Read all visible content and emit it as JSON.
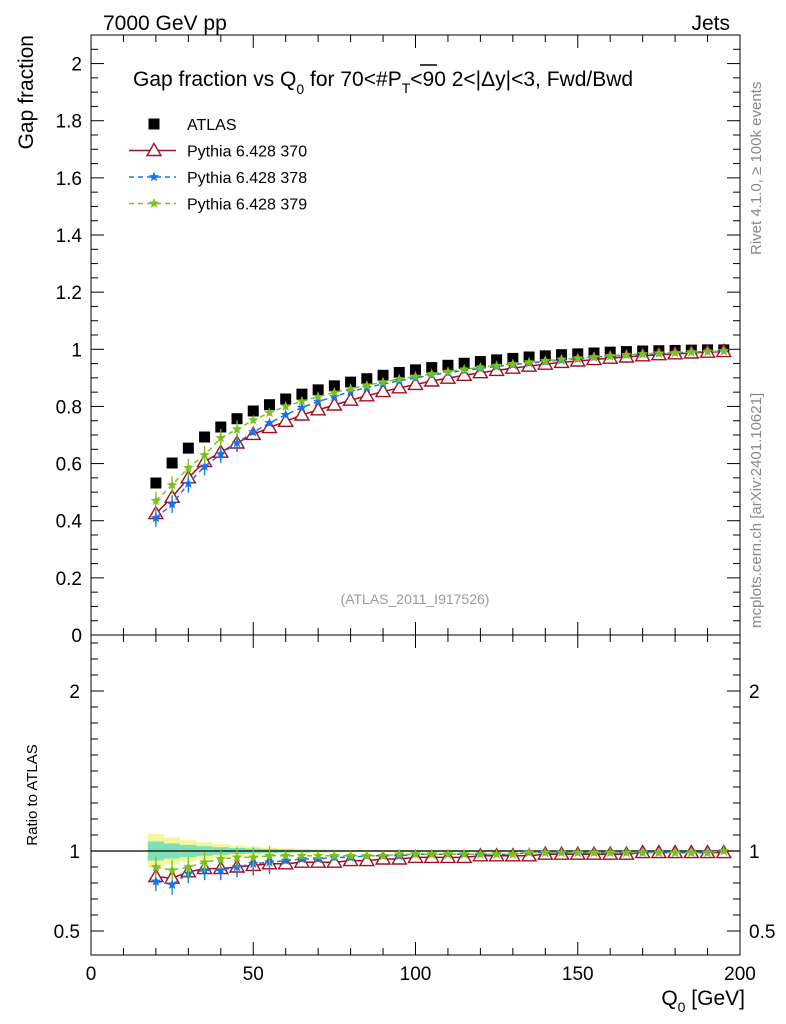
{
  "header": {
    "left": "7000 GeV pp",
    "right": "Jets"
  },
  "side_labels": {
    "rivet": "Rivet 4.1.0, ≥ 100k events",
    "mcplots": "mcplots.cern.ch [arXiv:2401.10621]"
  },
  "chart_data": [
    {
      "type": "scatter",
      "panel": "main",
      "title": "Gap fraction vs Q₀ for 70<#P̅T<90  2<|Δy|<3, Fwd/Bwd",
      "title_parts": {
        "a": "Gap fraction vs Q",
        "a_sub": "0",
        "b": " for 70<#",
        "b_over": "P",
        "b_sub": "T",
        "c": "<90  2<|Δy|<3, Fwd/Bwd"
      },
      "xlabel": "Q₀ [GeV]",
      "xlabel_parts": {
        "main": "Q",
        "sub": "0",
        "unit": " [GeV]"
      },
      "ylabel": "Gap fraction",
      "analysis_tag": "(ATLAS_2011_I917526)",
      "xlim": [
        0,
        200
      ],
      "ylim": [
        0,
        2.1
      ],
      "x_ticks": [
        0,
        50,
        100,
        150,
        200
      ],
      "y_ticks": [
        0,
        0.2,
        0.4,
        0.6,
        0.8,
        1,
        1.2,
        1.4,
        1.6,
        1.8,
        2
      ],
      "y_tick_labels": [
        "0",
        "0.2",
        "0.4",
        "0.6",
        "0.8",
        "1",
        "1.2",
        "1.4",
        "1.6",
        "1.8",
        "2"
      ],
      "x": [
        20,
        25,
        30,
        35,
        40,
        45,
        50,
        55,
        60,
        65,
        70,
        75,
        80,
        85,
        90,
        95,
        100,
        105,
        110,
        115,
        120,
        125,
        130,
        135,
        140,
        145,
        150,
        155,
        160,
        165,
        170,
        175,
        180,
        185,
        190,
        195
      ],
      "series": [
        {
          "name": "ATLAS",
          "color": "#000000",
          "marker": "square",
          "values": [
            0.532,
            0.602,
            0.654,
            0.693,
            0.728,
            0.757,
            0.784,
            0.806,
            0.826,
            0.843,
            0.858,
            0.872,
            0.885,
            0.897,
            0.909,
            0.919,
            0.928,
            0.936,
            0.944,
            0.951,
            0.957,
            0.963,
            0.968,
            0.973,
            0.977,
            0.981,
            0.984,
            0.987,
            0.99,
            0.992,
            0.994,
            0.995,
            0.996,
            0.997,
            0.998,
            0.998
          ]
        },
        {
          "name": "Pythia 6.428 370",
          "color": "#a01020",
          "marker": "triangle",
          "values": [
            0.425,
            0.482,
            0.55,
            0.607,
            0.64,
            0.672,
            0.702,
            0.726,
            0.748,
            0.77,
            0.788,
            0.805,
            0.822,
            0.837,
            0.852,
            0.865,
            0.877,
            0.889,
            0.899,
            0.909,
            0.918,
            0.926,
            0.934,
            0.941,
            0.948,
            0.954,
            0.959,
            0.964,
            0.969,
            0.973,
            0.977,
            0.981,
            0.984,
            0.987,
            0.99,
            0.992
          ]
        },
        {
          "name": "Pythia 6.428 378",
          "color": "#1a73e8",
          "marker": "star",
          "values": [
            0.41,
            0.458,
            0.53,
            0.59,
            0.633,
            0.672,
            0.71,
            0.742,
            0.771,
            0.796,
            0.817,
            0.834,
            0.852,
            0.866,
            0.878,
            0.89,
            0.9,
            0.91,
            0.918,
            0.926,
            0.933,
            0.94,
            0.946,
            0.952,
            0.957,
            0.962,
            0.967,
            0.972,
            0.976,
            0.98,
            0.983,
            0.986,
            0.988,
            0.99,
            0.992,
            0.994
          ]
        },
        {
          "name": "Pythia 6.428 379",
          "color": "#7cc01e",
          "marker": "star",
          "values": [
            0.47,
            0.525,
            0.585,
            0.63,
            0.69,
            0.72,
            0.752,
            0.778,
            0.8,
            0.818,
            0.834,
            0.849,
            0.862,
            0.874,
            0.885,
            0.896,
            0.905,
            0.914,
            0.922,
            0.93,
            0.937,
            0.943,
            0.949,
            0.955,
            0.96,
            0.965,
            0.969,
            0.973,
            0.977,
            0.98,
            0.983,
            0.986,
            0.988,
            0.99,
            0.992,
            0.994
          ]
        }
      ]
    },
    {
      "type": "scatter",
      "panel": "ratio",
      "ylabel": "Ratio to ATLAS",
      "xlim": [
        0,
        200
      ],
      "ylim": [
        0.35,
        2.35
      ],
      "y_ticks": [
        0.5,
        1,
        2
      ],
      "y_tick_labels": [
        "0.5",
        "1",
        "2"
      ],
      "x": [
        20,
        25,
        30,
        35,
        40,
        45,
        50,
        55,
        60,
        65,
        70,
        75,
        80,
        85,
        90,
        95,
        100,
        105,
        110,
        115,
        120,
        125,
        130,
        135,
        140,
        145,
        150,
        155,
        160,
        165,
        170,
        175,
        180,
        185,
        190,
        195
      ],
      "series": [
        {
          "name": "Pythia 6.428 370",
          "color": "#a01020",
          "values": [
            0.84,
            0.83,
            0.87,
            0.89,
            0.89,
            0.9,
            0.91,
            0.92,
            0.92,
            0.93,
            0.93,
            0.93,
            0.94,
            0.94,
            0.95,
            0.95,
            0.96,
            0.96,
            0.96,
            0.96,
            0.97,
            0.97,
            0.97,
            0.97,
            0.98,
            0.98,
            0.98,
            0.98,
            0.98,
            0.98,
            0.99,
            0.99,
            0.99,
            0.99,
            0.99,
            0.99
          ]
        },
        {
          "name": "Pythia 6.428 378",
          "color": "#1a73e8",
          "values": [
            0.81,
            0.79,
            0.86,
            0.88,
            0.88,
            0.9,
            0.92,
            0.93,
            0.94,
            0.95,
            0.95,
            0.96,
            0.96,
            0.97,
            0.97,
            0.97,
            0.98,
            0.98,
            0.98,
            0.98,
            0.98,
            0.98,
            0.98,
            0.99,
            0.99,
            0.99,
            0.99,
            0.99,
            0.99,
            0.99,
            0.99,
            0.99,
            0.99,
            0.99,
            0.99,
            1.0
          ]
        },
        {
          "name": "Pythia 6.428 379",
          "color": "#7cc01e",
          "values": [
            0.9,
            0.88,
            0.9,
            0.93,
            0.95,
            0.96,
            0.96,
            0.97,
            0.97,
            0.97,
            0.97,
            0.97,
            0.97,
            0.97,
            0.97,
            0.98,
            0.98,
            0.98,
            0.98,
            0.98,
            0.98,
            0.98,
            0.98,
            0.99,
            0.99,
            0.99,
            0.99,
            0.99,
            0.99,
            0.99,
            0.99,
            0.99,
            0.99,
            0.99,
            0.99,
            1.0
          ]
        }
      ]
    }
  ]
}
